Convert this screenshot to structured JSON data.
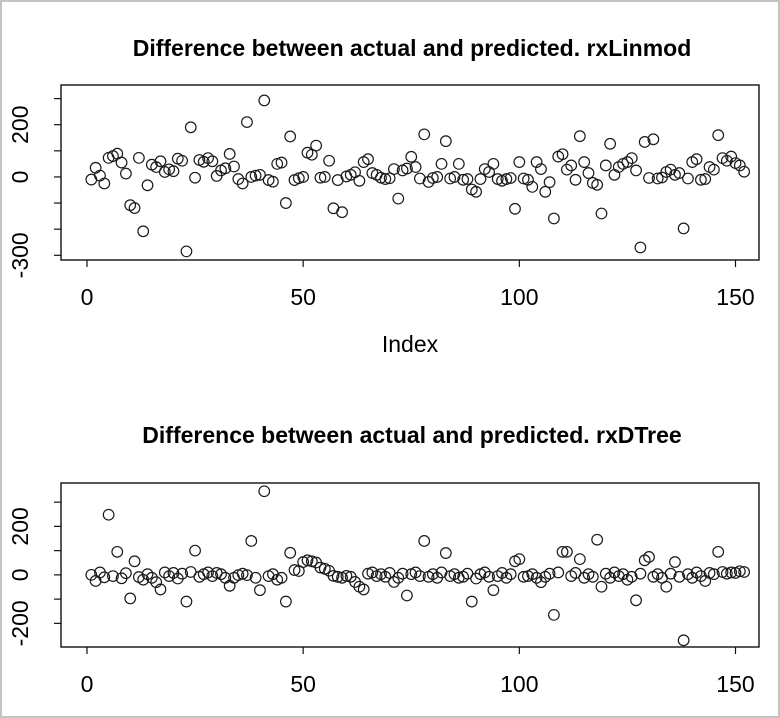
{
  "window": {
    "background": "#ffffff",
    "border_color": "#c3c3c3",
    "point_color": "#1a1a1a"
  },
  "chart_data": [
    {
      "type": "scatter",
      "title": "Difference between actual and predicted. rxLinmod",
      "xlabel": "Index",
      "ylabel": "",
      "marker": "open-circle",
      "x_is_index": true,
      "n_points": 152,
      "xlim": [
        1,
        152
      ],
      "ylim": [
        -318,
        352
      ],
      "grid": false,
      "xticks": {
        "values": [
          0,
          50,
          100,
          150
        ],
        "labels": [
          "0",
          "50",
          "100",
          "150"
        ]
      },
      "yticks": {
        "values": [
          300,
          200,
          100,
          0,
          -100,
          -200,
          -300
        ],
        "labels": [
          "",
          "200",
          "",
          "0",
          "",
          "",
          "-300"
        ]
      },
      "values": [
        -10,
        35,
        5,
        -25,
        73,
        80,
        89,
        55,
        13,
        -108,
        -119,
        73,
        -208,
        -32,
        47,
        38,
        60,
        19,
        29,
        22,
        70,
        62,
        -285,
        190,
        -3,
        65,
        58,
        72,
        60,
        4,
        25,
        33,
        88,
        40,
        -8,
        -25,
        210,
        0,
        5,
        8,
        293,
        -12,
        -18,
        50,
        55,
        -100,
        155,
        -12,
        -5,
        0,
        93,
        85,
        120,
        -3,
        0,
        62,
        -120,
        -12,
        -135,
        2,
        8,
        18,
        -15,
        57,
        68,
        15,
        8,
        -3,
        -8,
        -5,
        30,
        -83,
        25,
        32,
        77,
        38,
        -6,
        163,
        -19,
        -4,
        0,
        50,
        137,
        -6,
        0,
        50,
        -11,
        -8,
        -48,
        -57,
        -8,
        30,
        19,
        50,
        -8,
        -15,
        -8,
        -4,
        -122,
        57,
        -6,
        -11,
        -38,
        57,
        30,
        -57,
        -20,
        -159,
        78,
        87,
        28,
        44,
        -11,
        156,
        57,
        15,
        -23,
        -30,
        -140,
        44,
        127,
        8,
        38,
        50,
        57,
        72,
        25,
        -270,
        134,
        -4,
        144,
        -6,
        -2,
        19,
        28,
        8,
        15,
        -197,
        -6,
        57,
        68,
        -11,
        -8,
        38,
        28,
        160,
        72,
        62,
        78,
        53,
        44,
        20
      ]
    },
    {
      "type": "scatter",
      "title": "Difference between actual and predicted. rxDTree",
      "xlabel": "",
      "ylabel": "",
      "marker": "open-circle",
      "x_is_index": true,
      "n_points": 152,
      "xlim": [
        1,
        152
      ],
      "ylim": [
        -297.5,
        379
      ],
      "grid": false,
      "xticks": {
        "values": [
          0,
          50,
          100,
          150
        ],
        "labels": [
          "0",
          "50",
          "100",
          "150"
        ]
      },
      "yticks": {
        "values": [
          300,
          200,
          100,
          0,
          -100,
          -200
        ],
        "labels": [
          "",
          "200",
          "",
          "0",
          "",
          "-200"
        ]
      },
      "values": [
        0,
        -25,
        10,
        -10,
        248,
        -5,
        95,
        -14,
        7,
        -97,
        56,
        -9,
        -20,
        3,
        -12,
        -30,
        -60,
        10,
        -5,
        8,
        -15,
        5,
        -110,
        12,
        100,
        -8,
        3,
        10,
        -5,
        8,
        3,
        -12,
        -45,
        -12,
        -1,
        5,
        -1,
        140,
        -12,
        -63,
        345,
        -5,
        3,
        -20,
        -12,
        -110,
        91,
        20,
        16,
        53,
        60,
        56,
        51,
        30,
        25,
        17,
        -4,
        -8,
        -12,
        -4,
        -8,
        -29,
        -49,
        -60,
        5,
        10,
        -5,
        3,
        -8,
        8,
        -29,
        -12,
        5,
        -85,
        3,
        10,
        -5,
        140,
        -8,
        3,
        -12,
        10,
        90,
        -5,
        3,
        -12,
        -8,
        5,
        -110,
        -15,
        3,
        10,
        -8,
        -63,
        -5,
        8,
        -12,
        3,
        56,
        65,
        -8,
        -5,
        3,
        -12,
        -30,
        -8,
        5,
        -165,
        10,
        95,
        95,
        -5,
        8,
        65,
        -12,
        3,
        -8,
        145,
        -49,
        5,
        -12,
        10,
        -5,
        3,
        -20,
        -8,
        -105,
        5,
        60,
        74,
        -8,
        3,
        -12,
        -49,
        5,
        53,
        -8,
        -270,
        3,
        -12,
        10,
        -5,
        -25,
        8,
        3,
        95,
        12,
        5,
        10,
        8,
        15,
        12
      ]
    }
  ]
}
